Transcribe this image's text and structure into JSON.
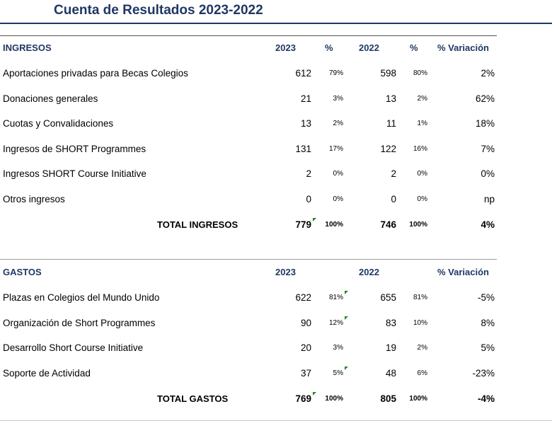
{
  "title": "Cuenta de Resultados 2023-2022",
  "ingresos": {
    "header": {
      "label": "INGRESOS",
      "col_2023": "2023",
      "col_pct1": "%",
      "col_2022": "2022",
      "col_pct2": "%",
      "col_var": "% Variación"
    },
    "rows": [
      {
        "label": "Aportaciones privadas para Becas Colegios",
        "v2023": "612",
        "p2023": "79%",
        "v2022": "598",
        "p2022": "80%",
        "var": "2%"
      },
      {
        "label": "Donaciones generales",
        "v2023": "21",
        "p2023": "3%",
        "v2022": "13",
        "p2022": "2%",
        "var": "62%"
      },
      {
        "label": "Cuotas y Convalidaciones",
        "v2023": "13",
        "p2023": "2%",
        "v2022": "11",
        "p2022": "1%",
        "var": "18%"
      },
      {
        "label": "Ingresos de SHORT Programmes",
        "v2023": "131",
        "p2023": "17%",
        "v2022": "122",
        "p2022": "16%",
        "var": "7%"
      },
      {
        "label": "Ingresos SHORT Course Initiative",
        "v2023": "2",
        "p2023": "0%",
        "v2022": "2",
        "p2022": "0%",
        "var": "0%"
      },
      {
        "label": "Otros ingresos",
        "v2023": "0",
        "p2023": "0%",
        "v2022": "0",
        "p2022": "0%",
        "var": "np"
      }
    ],
    "total": {
      "label": "TOTAL INGRESOS",
      "v2023": "779",
      "p2023": "100%",
      "v2022": "746",
      "p2022": "100%",
      "var": "4%"
    }
  },
  "gastos": {
    "header": {
      "label": "GASTOS",
      "col_2023": "2023",
      "col_2022": "2022",
      "col_var": "% Variación"
    },
    "rows": [
      {
        "label": "Plazas en Colegios del Mundo Unido",
        "v2023": "622",
        "p2023": "81%",
        "v2022": "655",
        "p2022": "81%",
        "var": "-5%"
      },
      {
        "label": "Organización de Short Programmes",
        "v2023": "90",
        "p2023": "12%",
        "v2022": "83",
        "p2022": "10%",
        "var": "8%"
      },
      {
        "label": "Desarrollo Short Course Initiative",
        "v2023": "20",
        "p2023": "3%",
        "v2022": "19",
        "p2022": "2%",
        "var": "5%"
      },
      {
        "label": "Soporte de Actividad",
        "v2023": "37",
        "p2023": "5%",
        "v2022": "48",
        "p2022": "6%",
        "var": "-23%"
      }
    ],
    "total": {
      "label": "TOTAL GASTOS",
      "v2023": "769",
      "p2023": "100%",
      "v2022": "805",
      "p2022": "100%",
      "var": "-4%"
    }
  }
}
